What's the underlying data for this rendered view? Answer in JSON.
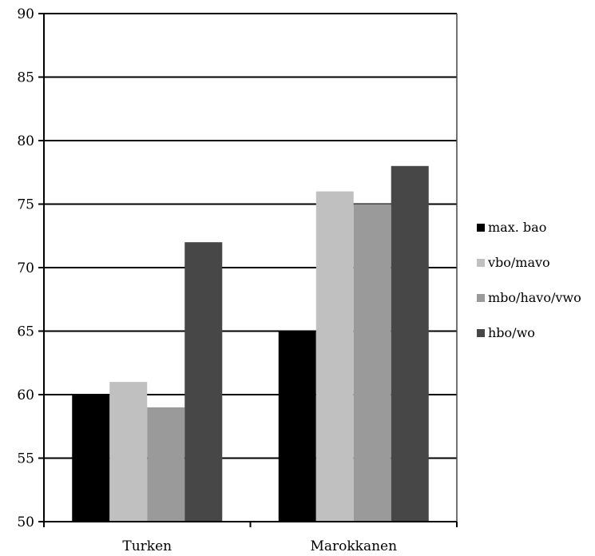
{
  "chart_data": {
    "type": "bar",
    "title": "",
    "xlabel": "",
    "ylabel": "",
    "categories": [
      "Turken",
      "Marokkanen"
    ],
    "series": [
      {
        "name": "max. bao",
        "values": [
          60,
          65
        ],
        "color": "#000000"
      },
      {
        "name": "vbo/mavo",
        "values": [
          61,
          76
        ],
        "color": "#c0c0c0"
      },
      {
        "name": "mbo/havo/vwo",
        "values": [
          59,
          75
        ],
        "color": "#9a9a9a"
      },
      {
        "name": "hbo/wo",
        "values": [
          72,
          78
        ],
        "color": "#474747"
      }
    ],
    "ylim": [
      50,
      90
    ],
    "yticks": [
      50,
      55,
      60,
      65,
      70,
      75,
      80,
      85,
      90
    ],
    "grid": true,
    "legend": "right"
  }
}
